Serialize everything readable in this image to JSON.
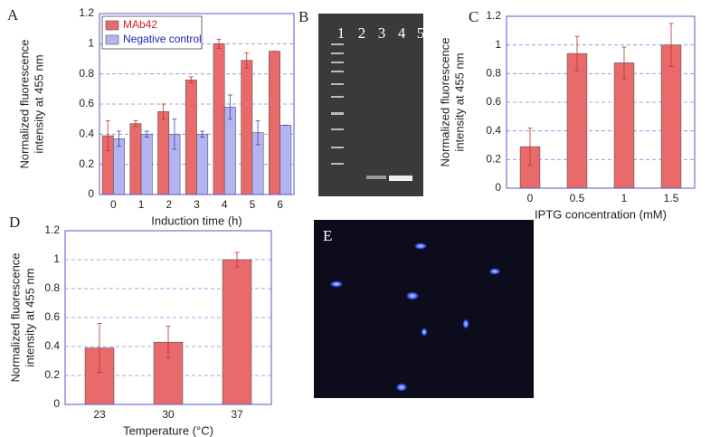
{
  "chart_data": [
    {
      "type": "bar",
      "panel": "A",
      "xlabel": "Induction time (h)",
      "ylabel": [
        "Normalized fluorescence",
        "intensity at 455 nm"
      ],
      "categories": [
        "0",
        "1",
        "2",
        "3",
        "4",
        "5",
        "6"
      ],
      "series": [
        {
          "name": "MAb42",
          "color": "#e86a6a",
          "values": [
            0.39,
            0.47,
            0.55,
            0.76,
            1.0,
            0.89,
            0.95
          ],
          "errors": [
            0.1,
            0.02,
            0.05,
            0.02,
            0.03,
            0.05,
            0.0
          ]
        },
        {
          "name": "Negative control",
          "color": "#b4b4f2",
          "values": [
            0.37,
            0.4,
            0.4,
            0.4,
            0.58,
            0.41,
            0.46
          ],
          "errors": [
            0.05,
            0.02,
            0.1,
            0.02,
            0.08,
            0.08,
            0.0
          ]
        }
      ],
      "ylim": [
        0,
        1.2
      ],
      "yticks": [
        0,
        0.2,
        0.4,
        0.6,
        0.8,
        1,
        1.2
      ],
      "grid": true,
      "legend": "top-left"
    },
    {
      "type": "bar",
      "panel": "C",
      "xlabel": "IPTG concentration (mM)",
      "ylabel": [
        "Normalized fluorescence",
        "intensity at 455 nm"
      ],
      "categories": [
        "0",
        "0.5",
        "1",
        "1.5"
      ],
      "series": [
        {
          "color": "#e86a6a",
          "values": [
            0.29,
            0.94,
            0.875,
            1.0
          ],
          "errors": [
            0.13,
            0.12,
            0.11,
            0.15
          ]
        }
      ],
      "ylim": [
        0,
        1.2
      ],
      "yticks": [
        0,
        0.2,
        0.4,
        0.6,
        0.8,
        1,
        1.2
      ],
      "grid": true
    },
    {
      "type": "bar",
      "panel": "D",
      "xlabel": "Temperature (°C)",
      "ylabel": [
        "Normalized fluorescence",
        "intensity at 455 nm"
      ],
      "categories": [
        "23",
        "30",
        "37"
      ],
      "series": [
        {
          "color": "#e86a6a",
          "values": [
            0.39,
            0.43,
            1.0
          ],
          "errors": [
            0.17,
            0.11,
            0.05
          ]
        }
      ],
      "ylim": [
        0,
        1.2
      ],
      "yticks": [
        0,
        0.2,
        0.4,
        0.6,
        0.8,
        1,
        1.2
      ],
      "grid": true
    }
  ],
  "gel": {
    "label": "B",
    "lanes": [
      "1",
      "2",
      "3",
      "4",
      "5"
    ]
  },
  "micrograph": {
    "label": "E"
  }
}
